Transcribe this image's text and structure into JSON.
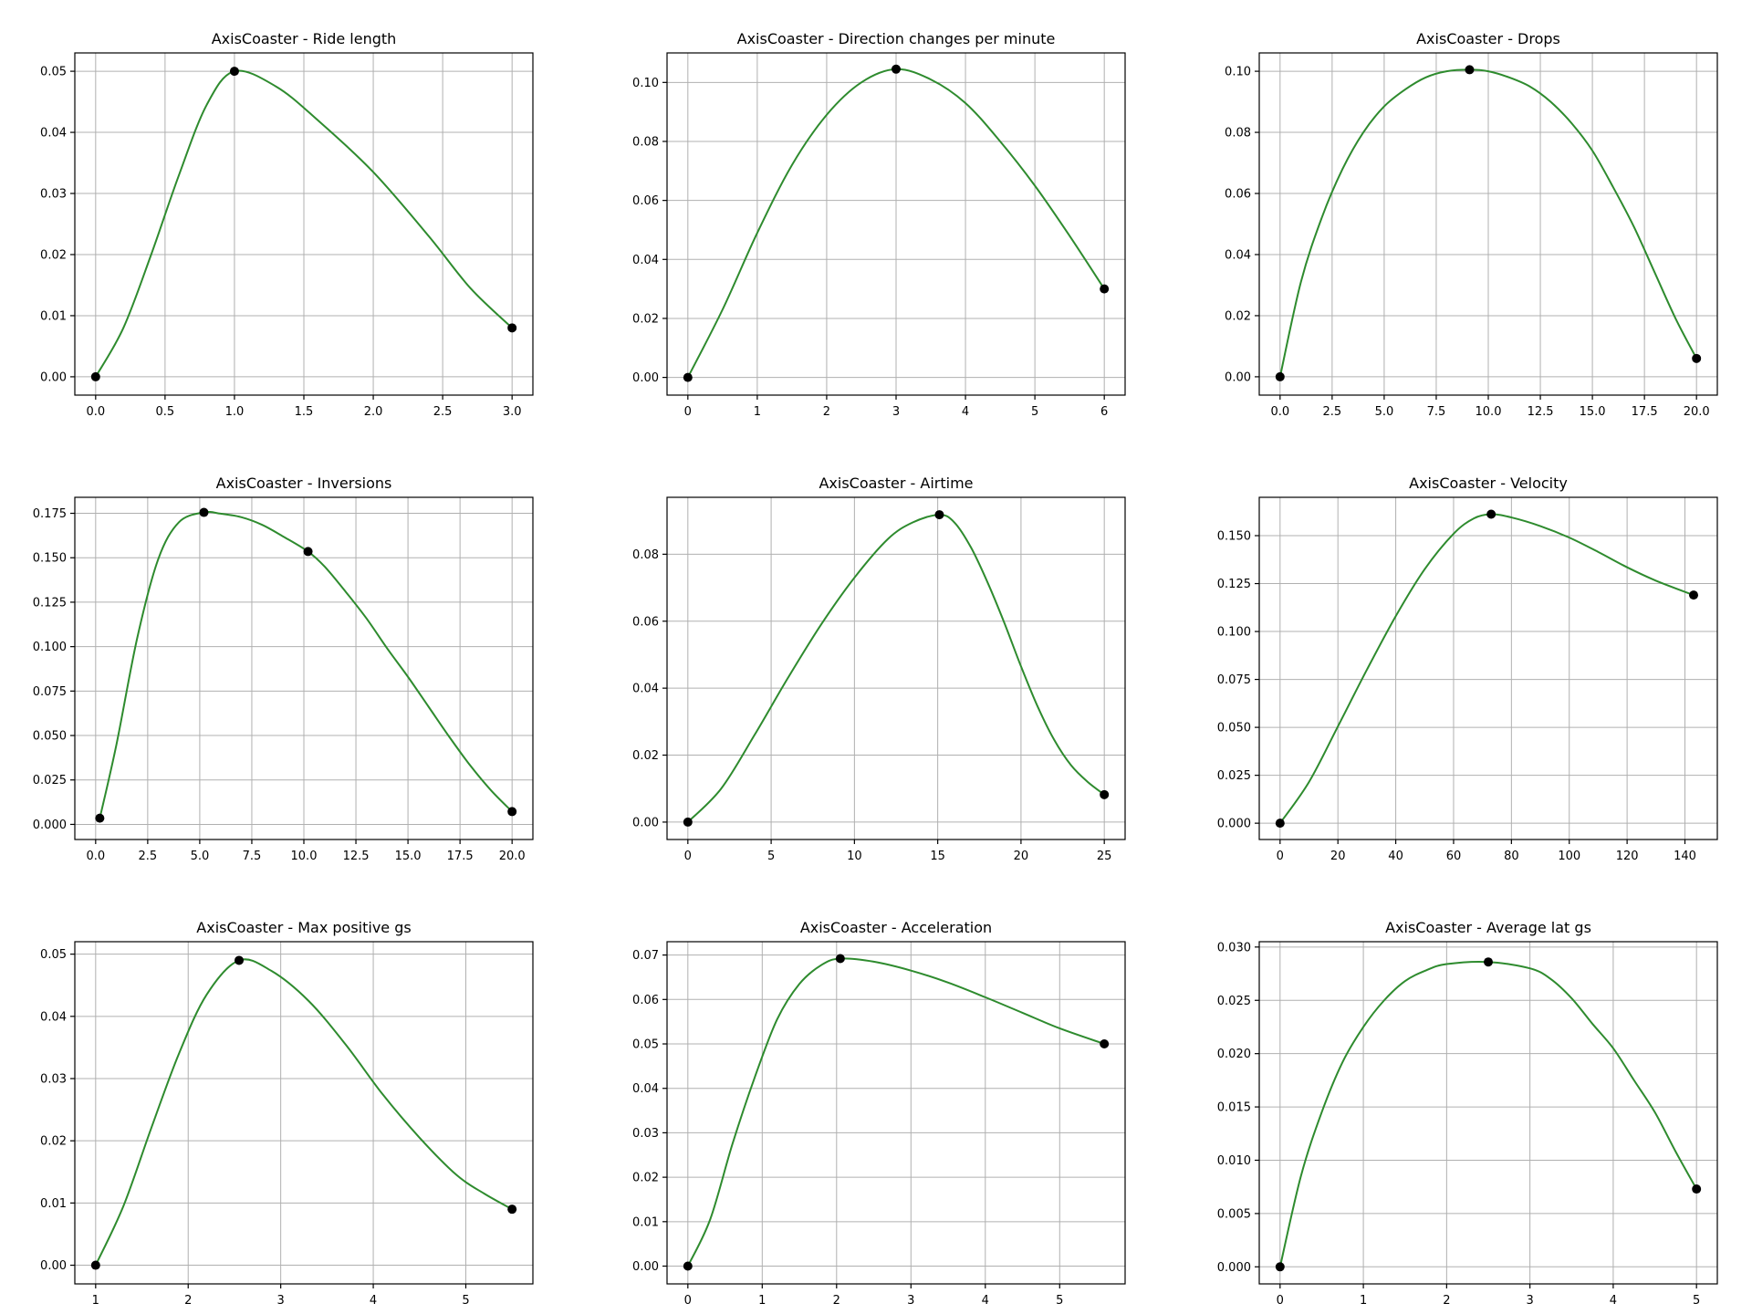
{
  "figure": {
    "curve_color": "#2e8b2e",
    "point_color": "#000000",
    "grid": true
  },
  "chart_data": [
    {
      "type": "line",
      "title": "AxisCoaster - Ride length",
      "xlim": [
        -0.15,
        3.15
      ],
      "ylim": [
        -0.003,
        0.053
      ],
      "xticks": [
        0,
        0.5,
        1,
        1.5,
        2,
        2.5,
        3
      ],
      "xtick_labels": [
        "0.0",
        "0.5",
        "1.0",
        "1.5",
        "2.0",
        "2.5",
        "3.0"
      ],
      "yticks": [
        0,
        0.01,
        0.02,
        0.03,
        0.04,
        0.05
      ],
      "ytick_labels": [
        "0.00",
        "0.01",
        "0.02",
        "0.03",
        "0.04",
        "0.05"
      ],
      "points": [
        [
          0,
          0
        ],
        [
          1,
          0.05
        ],
        [
          3,
          0.008
        ]
      ],
      "curve": [
        [
          0,
          0
        ],
        [
          0.2,
          0.008
        ],
        [
          0.4,
          0.02
        ],
        [
          0.6,
          0.033
        ],
        [
          0.8,
          0.0445
        ],
        [
          1,
          0.05
        ],
        [
          1.3,
          0.0475
        ],
        [
          1.6,
          0.042
        ],
        [
          2,
          0.0335
        ],
        [
          2.4,
          0.023
        ],
        [
          2.7,
          0.0145
        ],
        [
          3,
          0.008
        ]
      ]
    },
    {
      "type": "line",
      "title": "AxisCoaster - Direction changes per minute",
      "xlim": [
        -0.3,
        6.3
      ],
      "ylim": [
        -0.006,
        0.11
      ],
      "xticks": [
        0,
        1,
        2,
        3,
        4,
        5,
        6
      ],
      "xtick_labels": [
        "0",
        "1",
        "2",
        "3",
        "4",
        "5",
        "6"
      ],
      "yticks": [
        0,
        0.02,
        0.04,
        0.06,
        0.08,
        0.1
      ],
      "ytick_labels": [
        "0.00",
        "0.02",
        "0.04",
        "0.06",
        "0.08",
        "0.10"
      ],
      "points": [
        [
          0,
          0
        ],
        [
          3,
          0.1045
        ],
        [
          6,
          0.03
        ]
      ],
      "curve": [
        [
          0,
          0
        ],
        [
          0.5,
          0.023
        ],
        [
          1,
          0.049
        ],
        [
          1.5,
          0.072
        ],
        [
          2,
          0.089
        ],
        [
          2.5,
          0.1
        ],
        [
          3,
          0.1045
        ],
        [
          3.5,
          0.101
        ],
        [
          4,
          0.093
        ],
        [
          4.5,
          0.08
        ],
        [
          5,
          0.065
        ],
        [
          5.5,
          0.048
        ],
        [
          6,
          0.03
        ]
      ]
    },
    {
      "type": "line",
      "title": "AxisCoaster - Drops",
      "xlim": [
        -1.0,
        21.0
      ],
      "ylim": [
        -0.006,
        0.106
      ],
      "xticks": [
        0,
        2.5,
        5,
        7.5,
        10,
        12.5,
        15,
        17.5,
        20
      ],
      "xtick_labels": [
        "0.0",
        "2.5",
        "5.0",
        "7.5",
        "10.0",
        "12.5",
        "15.0",
        "17.5",
        "20.0"
      ],
      "yticks": [
        0,
        0.02,
        0.04,
        0.06,
        0.08,
        0.1
      ],
      "ytick_labels": [
        "0.00",
        "0.02",
        "0.04",
        "0.06",
        "0.08",
        "0.10"
      ],
      "points": [
        [
          0,
          0
        ],
        [
          9.1,
          0.1005
        ],
        [
          20,
          0.006
        ]
      ],
      "curve": [
        [
          0,
          0
        ],
        [
          1,
          0.031
        ],
        [
          2,
          0.052
        ],
        [
          3,
          0.068
        ],
        [
          4,
          0.08
        ],
        [
          5,
          0.0885
        ],
        [
          6,
          0.094
        ],
        [
          7,
          0.098
        ],
        [
          8,
          0.1
        ],
        [
          9.1,
          0.1005
        ],
        [
          10,
          0.1
        ],
        [
          11,
          0.098
        ],
        [
          12,
          0.095
        ],
        [
          13,
          0.09
        ],
        [
          14,
          0.083
        ],
        [
          15,
          0.074
        ],
        [
          16,
          0.062
        ],
        [
          17,
          0.049
        ],
        [
          18,
          0.034
        ],
        [
          19,
          0.019
        ],
        [
          20,
          0.006
        ]
      ]
    },
    {
      "type": "line",
      "title": "AxisCoaster - Inversions",
      "xlim": [
        -1.0,
        21.0
      ],
      "ylim": [
        -0.0085,
        0.184
      ],
      "xticks": [
        0,
        2.5,
        5,
        7.5,
        10,
        12.5,
        15,
        17.5,
        20
      ],
      "xtick_labels": [
        "0.0",
        "2.5",
        "5.0",
        "7.5",
        "10.0",
        "12.5",
        "15.0",
        "17.5",
        "20.0"
      ],
      "yticks": [
        0,
        0.025,
        0.05,
        0.075,
        0.1,
        0.125,
        0.15,
        0.175
      ],
      "ytick_labels": [
        "0.000",
        "0.025",
        "0.050",
        "0.075",
        "0.100",
        "0.125",
        "0.150",
        "0.175"
      ],
      "points": [
        [
          0.2,
          0.0035
        ],
        [
          5.2,
          0.1755
        ],
        [
          10.2,
          0.1535
        ],
        [
          20,
          0.0072
        ]
      ],
      "curve": [
        [
          0.2,
          0.0035
        ],
        [
          1,
          0.045
        ],
        [
          2,
          0.105
        ],
        [
          3,
          0.149
        ],
        [
          4,
          0.17
        ],
        [
          5.2,
          0.1755
        ],
        [
          6,
          0.1748
        ],
        [
          7,
          0.1728
        ],
        [
          8,
          0.1685
        ],
        [
          9,
          0.162
        ],
        [
          10.2,
          0.1535
        ],
        [
          11,
          0.145
        ],
        [
          12,
          0.131
        ],
        [
          13,
          0.116
        ],
        [
          14,
          0.099
        ],
        [
          15,
          0.083
        ],
        [
          16,
          0.066
        ],
        [
          17,
          0.049
        ],
        [
          18,
          0.033
        ],
        [
          19,
          0.019
        ],
        [
          20,
          0.0072
        ]
      ]
    },
    {
      "type": "line",
      "title": "AxisCoaster - Airtime",
      "xlim": [
        -1.25,
        26.25
      ],
      "ylim": [
        -0.0052,
        0.097
      ],
      "xticks": [
        0,
        5,
        10,
        15,
        20,
        25
      ],
      "xtick_labels": [
        "0",
        "5",
        "10",
        "15",
        "20",
        "25"
      ],
      "yticks": [
        0,
        0.02,
        0.04,
        0.06,
        0.08
      ],
      "ytick_labels": [
        "0.00",
        "0.02",
        "0.04",
        "0.06",
        "0.08"
      ],
      "points": [
        [
          0,
          0
        ],
        [
          15.1,
          0.0918
        ],
        [
          25,
          0.0082
        ]
      ],
      "curve": [
        [
          0,
          0
        ],
        [
          2,
          0.01
        ],
        [
          4,
          0.026
        ],
        [
          6,
          0.043
        ],
        [
          8,
          0.059
        ],
        [
          10,
          0.073
        ],
        [
          12,
          0.0845
        ],
        [
          13.5,
          0.0895
        ],
        [
          15.1,
          0.0918
        ],
        [
          16,
          0.0895
        ],
        [
          17,
          0.082
        ],
        [
          18,
          0.0715
        ],
        [
          19,
          0.0595
        ],
        [
          20,
          0.0465
        ],
        [
          21,
          0.0345
        ],
        [
          22,
          0.0245
        ],
        [
          23,
          0.017
        ],
        [
          24,
          0.012
        ],
        [
          25,
          0.0082
        ]
      ]
    },
    {
      "type": "line",
      "title": "AxisCoaster - Velocity",
      "xlim": [
        -7.2,
        151.2
      ],
      "ylim": [
        -0.0085,
        0.17
      ],
      "xticks": [
        0,
        20,
        40,
        60,
        80,
        100,
        120,
        140
      ],
      "xtick_labels": [
        "0",
        "20",
        "40",
        "60",
        "80",
        "100",
        "120",
        "140"
      ],
      "yticks": [
        0,
        0.025,
        0.05,
        0.075,
        0.1,
        0.125,
        0.15
      ],
      "ytick_labels": [
        "0.000",
        "0.025",
        "0.050",
        "0.075",
        "0.100",
        "0.125",
        "0.150"
      ],
      "points": [
        [
          0,
          0
        ],
        [
          73,
          0.1612
        ],
        [
          143,
          0.119
        ]
      ],
      "curve": [
        [
          0,
          0
        ],
        [
          10,
          0.0215
        ],
        [
          20,
          0.0505
        ],
        [
          30,
          0.08
        ],
        [
          40,
          0.108
        ],
        [
          50,
          0.1325
        ],
        [
          60,
          0.151
        ],
        [
          67,
          0.159
        ],
        [
          73,
          0.1612
        ],
        [
          80,
          0.1595
        ],
        [
          90,
          0.155
        ],
        [
          100,
          0.149
        ],
        [
          110,
          0.1415
        ],
        [
          120,
          0.1335
        ],
        [
          130,
          0.1265
        ],
        [
          143,
          0.119
        ]
      ]
    },
    {
      "type": "line",
      "title": "AxisCoaster - Max positive gs",
      "xlim": [
        0.775,
        5.725
      ],
      "ylim": [
        -0.003,
        0.052
      ],
      "xticks": [
        1,
        2,
        3,
        4,
        5
      ],
      "xtick_labels": [
        "1",
        "2",
        "3",
        "4",
        "5"
      ],
      "yticks": [
        0,
        0.01,
        0.02,
        0.03,
        0.04,
        0.05
      ],
      "ytick_labels": [
        "0.00",
        "0.01",
        "0.02",
        "0.03",
        "0.04",
        "0.05"
      ],
      "points": [
        [
          1,
          0
        ],
        [
          2.55,
          0.049
        ],
        [
          5.5,
          0.009
        ]
      ],
      "curve": [
        [
          1,
          0
        ],
        [
          1.3,
          0.0095
        ],
        [
          1.6,
          0.022
        ],
        [
          1.9,
          0.034
        ],
        [
          2.2,
          0.0435
        ],
        [
          2.55,
          0.049
        ],
        [
          2.9,
          0.0473
        ],
        [
          3.3,
          0.0425
        ],
        [
          3.7,
          0.0355
        ],
        [
          4.1,
          0.0275
        ],
        [
          4.5,
          0.0205
        ],
        [
          4.9,
          0.0145
        ],
        [
          5.2,
          0.0115
        ],
        [
          5.5,
          0.009
        ]
      ]
    },
    {
      "type": "line",
      "title": "AxisCoaster - Acceleration",
      "xlim": [
        -0.28,
        5.88
      ],
      "ylim": [
        -0.004,
        0.073
      ],
      "xticks": [
        0,
        1,
        2,
        3,
        4,
        5
      ],
      "xtick_labels": [
        "0",
        "1",
        "2",
        "3",
        "4",
        "5"
      ],
      "yticks": [
        0,
        0.01,
        0.02,
        0.03,
        0.04,
        0.05,
        0.06,
        0.07
      ],
      "ytick_labels": [
        "0.00",
        "0.01",
        "0.02",
        "0.03",
        "0.04",
        "0.05",
        "0.06",
        "0.07"
      ],
      "points": [
        [
          0,
          0
        ],
        [
          2.05,
          0.0692
        ],
        [
          5.6,
          0.05
        ]
      ],
      "curve": [
        [
          0,
          0
        ],
        [
          0.3,
          0.0105
        ],
        [
          0.6,
          0.0275
        ],
        [
          0.9,
          0.0425
        ],
        [
          1.2,
          0.0555
        ],
        [
          1.5,
          0.0635
        ],
        [
          1.8,
          0.0678
        ],
        [
          2.05,
          0.0692
        ],
        [
          2.5,
          0.0685
        ],
        [
          3,
          0.0665
        ],
        [
          3.5,
          0.0638
        ],
        [
          4,
          0.0605
        ],
        [
          4.5,
          0.057
        ],
        [
          5,
          0.0535
        ],
        [
          5.6,
          0.05
        ]
      ]
    },
    {
      "type": "line",
      "title": "AxisCoaster - Average lat gs",
      "xlim": [
        -0.25,
        5.25
      ],
      "ylim": [
        -0.0016,
        0.0305
      ],
      "xticks": [
        0,
        1,
        2,
        3,
        4,
        5
      ],
      "xtick_labels": [
        "0",
        "1",
        "2",
        "3",
        "4",
        "5"
      ],
      "yticks": [
        0,
        0.005,
        0.01,
        0.015,
        0.02,
        0.025,
        0.03
      ],
      "ytick_labels": [
        "0.000",
        "0.005",
        "0.010",
        "0.015",
        "0.020",
        "0.025",
        "0.030"
      ],
      "points": [
        [
          0,
          0
        ],
        [
          2.5,
          0.0286
        ],
        [
          5,
          0.0073
        ]
      ],
      "curve": [
        [
          0,
          0
        ],
        [
          0.25,
          0.0085
        ],
        [
          0.5,
          0.0145
        ],
        [
          0.75,
          0.0192
        ],
        [
          1,
          0.0225
        ],
        [
          1.25,
          0.025
        ],
        [
          1.5,
          0.0268
        ],
        [
          1.75,
          0.0278
        ],
        [
          2,
          0.0284
        ],
        [
          2.5,
          0.0286
        ],
        [
          3,
          0.028
        ],
        [
          3.25,
          0.027
        ],
        [
          3.5,
          0.0252
        ],
        [
          3.75,
          0.0228
        ],
        [
          4,
          0.0205
        ],
        [
          4.25,
          0.0175
        ],
        [
          4.5,
          0.0145
        ],
        [
          4.75,
          0.0108
        ],
        [
          5,
          0.0073
        ]
      ]
    }
  ]
}
